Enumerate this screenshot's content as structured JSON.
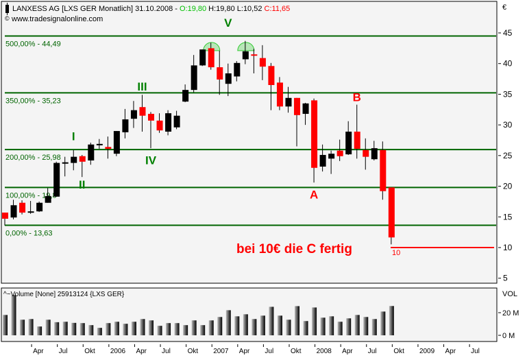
{
  "header": {
    "title": "LANXESS AG [LXS GER  Monatlich] 31.10.2008 - ",
    "open": "O:19,80",
    "high": "H:19,80",
    "low": "L:10,52",
    "close": "C:11,65",
    "source": "www.tradesignalonline.com"
  },
  "colors": {
    "up": "#000000",
    "down": "#ff0000",
    "fib": "#006400",
    "wave_green": "#008000",
    "wave_red": "#ff0000",
    "open_text": "#00c000",
    "close_text": "#ff0000",
    "background": "#f4f4f4"
  },
  "axis": {
    "currency": "€",
    "vol_label": "VOL",
    "vol_ticks": [
      "20 M",
      "0 M"
    ]
  },
  "volume_panel": {
    "title": "Volume [None] 25913124 {LXS GER}"
  },
  "annotation": {
    "text": "bei 10€ die C fertig",
    "target_label": "10"
  },
  "chart_data": [
    {
      "type": "candlestick",
      "title": "LANXESS AG [LXS GER  Monatlich]",
      "ylim": [
        4,
        48
      ],
      "yticks": [
        5,
        10,
        15,
        20,
        25,
        30,
        35,
        40,
        45
      ],
      "xtick_labels": [
        "Apr",
        "Jul",
        "Okt",
        "2006",
        "Apr",
        "Jul",
        "Okt",
        "2007",
        "Apr",
        "Jul",
        "Okt",
        "2008",
        "Apr",
        "Jul",
        "Okt",
        "2009",
        "Apr",
        "Jul"
      ],
      "period": "monthly, Jan 2005 – Oct 2008",
      "ohlc": [
        [
          15.7,
          15.7,
          13.6,
          14.7
        ],
        [
          14.9,
          17.8,
          14.6,
          16.9
        ],
        [
          17.3,
          17.7,
          15.4,
          15.7
        ],
        [
          15.8,
          17.6,
          15.5,
          15.9
        ],
        [
          15.9,
          17.5,
          15.8,
          17.3
        ],
        [
          17.3,
          19.7,
          17.3,
          18.4
        ],
        [
          18.3,
          24.0,
          18.3,
          23.8
        ],
        [
          23.7,
          24.8,
          21.6,
          23.9
        ],
        [
          23.8,
          25.9,
          22.6,
          24.8
        ],
        [
          24.9,
          25.1,
          21.5,
          24.0
        ],
        [
          24.2,
          27.1,
          23.5,
          26.8
        ],
        [
          26.7,
          27.7,
          26.1,
          26.9
        ],
        [
          26.4,
          28.1,
          24.5,
          26.1
        ],
        [
          25.3,
          29.0,
          24.9,
          29.0
        ],
        [
          28.8,
          32.6,
          27.8,
          30.9
        ],
        [
          31.0,
          33.9,
          29.5,
          32.4
        ],
        [
          32.9,
          34.9,
          28.9,
          31.5
        ],
        [
          31.8,
          32.1,
          26.2,
          30.7
        ],
        [
          30.7,
          31.9,
          28.7,
          29.1
        ],
        [
          28.9,
          32.4,
          28.3,
          31.9
        ],
        [
          29.6,
          32.3,
          29.3,
          31.5
        ],
        [
          33.8,
          36.6,
          33.7,
          35.7
        ],
        [
          35.7,
          41.4,
          35.3,
          39.7
        ],
        [
          39.7,
          42.3,
          39.6,
          42.3
        ],
        [
          42.5,
          43.4,
          39.0,
          39.4
        ],
        [
          39.4,
          42.1,
          34.9,
          37.4
        ],
        [
          36.7,
          40.0,
          34.7,
          38.4
        ],
        [
          37.9,
          40.4,
          37.1,
          40.1
        ],
        [
          40.7,
          43.7,
          39.9,
          42.0
        ],
        [
          41.5,
          42.4,
          38.4,
          41.3
        ],
        [
          40.9,
          43.0,
          37.3,
          39.5
        ],
        [
          39.6,
          40.1,
          32.4,
          36.5
        ],
        [
          36.9,
          37.8,
          32.4,
          33.0
        ],
        [
          33.0,
          36.2,
          32.0,
          34.4
        ],
        [
          34.4,
          34.4,
          26.5,
          31.6
        ],
        [
          31.8,
          33.6,
          30.0,
          33.5
        ],
        [
          34.0,
          34.3,
          20.6,
          23.0
        ],
        [
          23.2,
          26.8,
          22.4,
          25.1
        ],
        [
          24.5,
          25.8,
          22.0,
          25.3
        ],
        [
          25.8,
          27.6,
          24.1,
          24.9
        ],
        [
          25.2,
          30.6,
          25.1,
          28.9
        ],
        [
          28.9,
          33.3,
          24.5,
          26.1
        ],
        [
          25.9,
          27.8,
          22.7,
          24.8
        ],
        [
          24.4,
          27.4,
          24.2,
          26.2
        ],
        [
          25.9,
          27.3,
          17.8,
          19.2
        ],
        [
          19.8,
          19.8,
          10.52,
          11.65
        ]
      ],
      "fib_levels": [
        {
          "label": "500,00% - 44,49",
          "value": 44.49
        },
        {
          "label": "350,00% - 35,23",
          "value": 35.23
        },
        {
          "label": "200,00% - 25,98",
          "value": 25.98
        },
        {
          "label": "100,00% - 19,8",
          "value": 19.8
        },
        {
          "label": "0,00% - 13,63",
          "value": 13.63
        }
      ],
      "wave_labels": [
        {
          "text": "I",
          "index": 8,
          "value": 27.5,
          "color": "green"
        },
        {
          "text": "II",
          "index": 9,
          "value": 19.6,
          "color": "green"
        },
        {
          "text": "III",
          "index": 16,
          "value": 35.6,
          "color": "green"
        },
        {
          "text": "IV",
          "index": 17,
          "value": 23.6,
          "color": "green"
        },
        {
          "text": "V",
          "index": 26,
          "value": 46.0,
          "color": "green"
        },
        {
          "text": "A",
          "index": 36,
          "value": 18.0,
          "color": "red"
        },
        {
          "text": "B",
          "index": 41,
          "value": 33.9,
          "color": "red"
        }
      ],
      "top_markers": [
        24,
        28
      ],
      "target_line": 10
    },
    {
      "type": "bar",
      "title": "Volume [None] 25913124 {LXS GER}",
      "ylabel": "VOL",
      "unit": "M",
      "values": [
        18,
        35.6,
        13.8,
        14.4,
        7.8,
        13.8,
        11.6,
        12,
        11,
        10.8,
        9,
        6.6,
        10.8,
        12,
        10.2,
        12,
        14.4,
        13.2,
        8.4,
        10.8,
        10.8,
        9,
        13.2,
        9,
        13.2,
        16.2,
        22.2,
        16.8,
        18.6,
        14.4,
        17.4,
        25.2,
        17.4,
        13.8,
        25.8,
        12.6,
        24.6,
        15.6,
        16.8,
        12,
        15,
        18,
        16.2,
        14.4,
        21,
        25.9
      ]
    }
  ]
}
